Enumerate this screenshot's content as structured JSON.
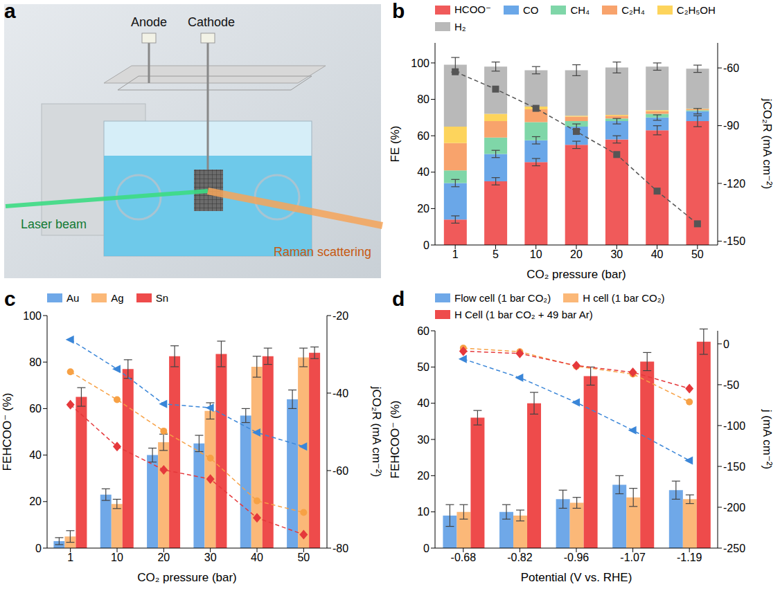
{
  "diagram": {
    "letter": "a",
    "labels": {
      "anode": "Anode",
      "cathode": "Cathode",
      "laser": "Laser beam",
      "raman": "Raman scattering"
    }
  },
  "chart_data": [
    {
      "letter": "b",
      "type": "bar",
      "stacked": true,
      "legend": "top",
      "x_label": "CO₂ pressure (bar)",
      "y_label": "FE (%)",
      "y2_label": "jCO₂R (mA cm⁻²)",
      "categories": [
        "1",
        "5",
        "10",
        "20",
        "30",
        "40",
        "50"
      ],
      "ylim": [
        0,
        111
      ],
      "yticks": [
        0,
        20,
        40,
        60,
        80,
        100
      ],
      "y2lim": [
        -152,
        -47
      ],
      "y2ticks": [
        -150,
        -120,
        -90,
        -60
      ],
      "series": [
        {
          "name": "HCOO⁻",
          "color": "#f05a5a",
          "values": [
            14,
            35,
            45.5,
            55,
            58,
            63,
            68
          ],
          "errors": [
            2,
            2,
            2,
            2,
            2,
            2.5,
            3
          ]
        },
        {
          "name": "CO",
          "color": "#6aa7e8",
          "values": [
            20,
            15,
            12,
            10,
            10,
            7,
            5.5
          ],
          "errors": [
            2,
            2,
            2,
            1.5,
            1.5,
            1.5,
            1.5
          ]
        },
        {
          "name": "CH₄",
          "color": "#7fd6a8",
          "values": [
            7,
            9,
            10,
            3,
            1.5,
            2,
            0.5
          ]
        },
        {
          "name": "C₂H₄",
          "color": "#f8a36c",
          "values": [
            15,
            9,
            7,
            2.5,
            1.5,
            1.5,
            0.5
          ]
        },
        {
          "name": "C₂H₅OH",
          "color": "#fdd45c",
          "values": [
            9,
            4,
            1.5,
            0.5,
            0.5,
            0.5,
            0.3
          ]
        },
        {
          "name": "H₂",
          "color": "#b9b9b9",
          "values": [
            34,
            26,
            20,
            25,
            26,
            24,
            22
          ],
          "errors": [
            4,
            2.5,
            2,
            3,
            3,
            2,
            2
          ]
        },
        {
          "type": "line",
          "axis": "y2",
          "color": "#555555",
          "marker": "square",
          "line_style": "dashed",
          "values": [
            -62,
            -71,
            -81,
            -93,
            -105,
            -124,
            -141
          ]
        }
      ]
    },
    {
      "letter": "c",
      "type": "bar",
      "legend": "top",
      "x_label": "CO₂ pressure (bar)",
      "y_label": "FEHCOO⁻ (%)",
      "y2_label": "jCO₂R (mA cm⁻²)",
      "categories": [
        "1",
        "10",
        "20",
        "30",
        "40",
        "50"
      ],
      "ylim": [
        0,
        100
      ],
      "yticks": [
        0,
        20,
        40,
        60,
        80,
        100
      ],
      "y2lim": [
        -80,
        -20
      ],
      "y2ticks": [
        -80,
        -60,
        -40,
        -20
      ],
      "series": [
        {
          "name": "Au",
          "color": "#6fa8e8",
          "values": [
            3,
            23,
            40,
            45,
            57,
            64
          ],
          "errors": [
            1.5,
            2.5,
            3,
            3.5,
            3,
            4
          ]
        },
        {
          "name": "Ag",
          "color": "#fbb878",
          "values": [
            5,
            19,
            45.5,
            59,
            78,
            82
          ],
          "errors": [
            2.5,
            2,
            3.5,
            3.5,
            4.5,
            4
          ]
        },
        {
          "name": "Sn",
          "color": "#ee4b4b",
          "values": [
            65,
            77,
            82.5,
            83.5,
            82.5,
            84
          ],
          "errors": [
            4,
            4,
            4.5,
            5.5,
            3.5,
            2.5
          ]
        },
        {
          "type": "line",
          "axis": "y2",
          "color": "#3a86d8",
          "marker": "triangle-left",
          "line_style": "dashed",
          "values": [
            -26.2,
            -33.8,
            -42.8,
            -43.8,
            -50.2,
            -53.8
          ]
        },
        {
          "type": "line",
          "axis": "y2",
          "color": "#f7a145",
          "marker": "circle",
          "line_style": "dashed",
          "values": [
            -34.5,
            -41.7,
            -49.8,
            -56.8,
            -67.8,
            -70.8
          ]
        },
        {
          "type": "line",
          "axis": "y2",
          "color": "#e5383b",
          "marker": "diamond",
          "line_style": "dashed",
          "values": [
            -43,
            -53.8,
            -59.8,
            -62.2,
            -72.2,
            -76.5
          ]
        }
      ]
    },
    {
      "letter": "d",
      "type": "bar",
      "legend": "top",
      "x_label": "Potential (V vs. RHE)",
      "y_label": "FEHCOO⁻ (%)",
      "y2_label": "j (mA cm⁻²)",
      "categories": [
        "-0.68",
        "-0.82",
        "-0.96",
        "-1.07",
        "-1.19"
      ],
      "ylim": [
        0,
        60
      ],
      "yticks": [
        0,
        10,
        20,
        30,
        40,
        50,
        60
      ],
      "y2lim": [
        -250,
        16
      ],
      "y2ticks": [
        -250,
        -200,
        -150,
        -100,
        -50,
        0
      ],
      "series": [
        {
          "name": "Flow cell (1 bar CO₂)",
          "color": "#6fa8e8",
          "values": [
            9,
            10,
            13.5,
            17.5,
            16
          ],
          "errors": [
            3,
            2,
            2.5,
            2.5,
            2.5
          ]
        },
        {
          "name": "H cell (1 bar CO₂)",
          "color": "#fbb878",
          "values": [
            10,
            9,
            12.5,
            14,
            13.5
          ],
          "errors": [
            2,
            1.5,
            1.5,
            2.5,
            1.2
          ]
        },
        {
          "name": "H Cell (1 bar CO₂ + 49 bar Ar)",
          "color": "#ee4b4b",
          "values": [
            36,
            40,
            47.5,
            51.5,
            57
          ],
          "errors": [
            2,
            3,
            2.5,
            2.5,
            3.5
          ]
        },
        {
          "type": "line",
          "axis": "y2",
          "color": "#3a86d8",
          "marker": "triangle-left",
          "line_style": "dashed",
          "values": [
            -18.5,
            -41.4,
            -71.7,
            -105.8,
            -142.8
          ]
        },
        {
          "type": "line",
          "axis": "y2",
          "color": "#f7a145",
          "marker": "circle",
          "line_style": "dashed",
          "values": [
            -5.2,
            -9.6,
            -27.4,
            -37,
            -71
          ]
        },
        {
          "type": "line",
          "axis": "y2",
          "color": "#e5383b",
          "marker": "diamond",
          "line_style": "dashed",
          "values": [
            -8.9,
            -11.8,
            -26.6,
            -34.8,
            -54.7
          ]
        }
      ]
    }
  ]
}
